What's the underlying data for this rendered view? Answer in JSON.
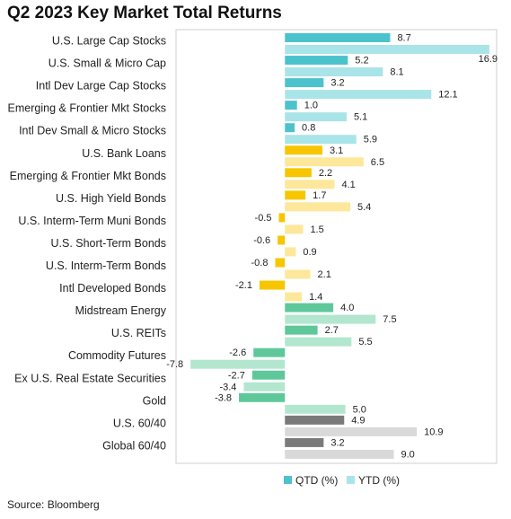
{
  "title": "Q2 2023 Key Market Total Returns",
  "source": "Source: Bloomberg",
  "colors": {
    "qtd": [
      "#4cc3cc",
      "#4cc3cc",
      "#4cc3cc",
      "#4cc3cc",
      "#4cc3cc",
      "#f7c600",
      "#f7c600",
      "#f7c600",
      "#f7c600",
      "#f7c600",
      "#f7c600",
      "#f7c600",
      "#5fc89a",
      "#5fc89a",
      "#5fc89a",
      "#5fc89a",
      "#5fc89a",
      "#7a7a7a",
      "#7a7a7a"
    ],
    "ytd": [
      "#a9e4e8",
      "#a9e4e8",
      "#a9e4e8",
      "#a9e4e8",
      "#a9e4e8",
      "#fde79a",
      "#fde79a",
      "#fde79a",
      "#fde79a",
      "#fde79a",
      "#fde79a",
      "#fde79a",
      "#b3e6cf",
      "#b3e6cf",
      "#b3e6cf",
      "#b3e6cf",
      "#b3e6cf",
      "#d9d9d9",
      "#d9d9d9"
    ],
    "legend_qtd": "#4cc3cc",
    "legend_ytd": "#a9e4e8",
    "frame": "#cfcfcf"
  },
  "chart_data": {
    "type": "bar",
    "orientation": "horizontal",
    "categories": [
      "U.S. Large Cap Stocks",
      "U.S. Small & Micro Cap",
      "Intl Dev Large Cap Stocks",
      "Emerging & Frontier Mkt Stocks",
      "Intl Dev Small & Micro Stocks",
      "U.S. Bank Loans",
      "Emerging & Frontier Mkt Bonds",
      "U.S. High Yield Bonds",
      "U.S. Interm-Term Muni Bonds",
      "U.S. Short-Term Bonds",
      "U.S. Interm-Term Bonds",
      "Intl Developed Bonds",
      "Midstream Energy",
      "U.S. REITs",
      "Commodity Futures",
      "Ex U.S. Real Estate Securities",
      "Gold",
      "U.S. 60/40",
      "Global 60/40"
    ],
    "series": [
      {
        "name": "QTD (%)",
        "values": [
          8.7,
          5.2,
          3.2,
          1.0,
          0.8,
          3.1,
          2.2,
          1.7,
          -0.5,
          -0.6,
          -0.8,
          -2.1,
          4.0,
          2.7,
          -2.6,
          -2.7,
          -3.8,
          4.9,
          3.2
        ],
        "labels": [
          "8.7",
          "5.2",
          "3.2",
          "1.0",
          "0.8",
          "3.1",
          "2.2",
          "1.7",
          "-0.5",
          "-0.6",
          "-0.8",
          "-2.1",
          "4.0",
          "2.7",
          "-2.6",
          "-2.7",
          "-3.8",
          "4.9",
          "3.2"
        ]
      },
      {
        "name": "YTD (%)",
        "values": [
          16.9,
          8.1,
          12.1,
          5.1,
          5.9,
          6.5,
          4.1,
          5.4,
          1.5,
          0.9,
          2.1,
          1.4,
          7.5,
          5.5,
          -7.8,
          -3.4,
          5.0,
          10.9,
          9.0
        ],
        "labels": [
          "16.9",
          "8.1",
          "12.1",
          "5.1",
          "5.9",
          "6.5",
          "4.1",
          "5.4",
          "1.5",
          "0.9",
          "2.1",
          "1.4",
          "7.5",
          "5.5",
          "-7.8",
          "-3.4",
          "5.0",
          "10.9",
          "9.0"
        ]
      }
    ],
    "xlim": [
      -9.0,
      17.5
    ],
    "legend_position": "bottom",
    "grid": false
  }
}
